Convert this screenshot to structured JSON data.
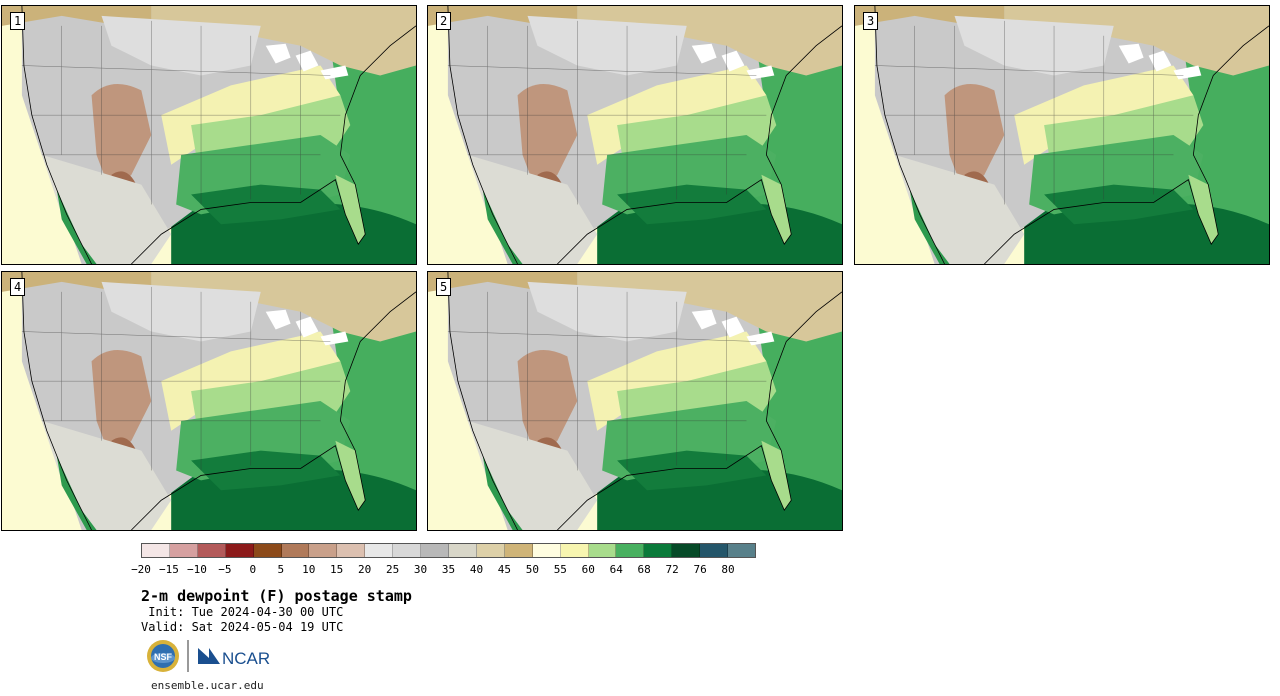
{
  "members": [
    {
      "label": "1"
    },
    {
      "label": "2"
    },
    {
      "label": "3"
    },
    {
      "label": "4"
    },
    {
      "label": "5"
    }
  ],
  "colorbar": {
    "colors": [
      "#f4e6e6",
      "#d6a0a0",
      "#b35a5a",
      "#8c1a1a",
      "#8c4a1a",
      "#b07a5a",
      "#c9a08a",
      "#dcc0b0",
      "#e8e8e8",
      "#d8d8d8",
      "#b8b8b8",
      "#d8d6c8",
      "#ddd0a8",
      "#cfb478",
      "#fffde0",
      "#f7f5b0",
      "#a8dc8c",
      "#48b060",
      "#0a7a3a",
      "#064a28",
      "#24566a",
      "#58808a"
    ],
    "ticks": [
      "−20",
      "−15",
      "−10",
      "−5",
      "0",
      "5",
      "10",
      "15",
      "20",
      "25",
      "30",
      "35",
      "40",
      "45",
      "50",
      "55",
      "60",
      "64",
      "68",
      "72",
      "76",
      "80"
    ],
    "units": "F"
  },
  "title": "2-m dewpoint (F) postage stamp",
  "init": " Init: Tue 2024-04-30 00 UTC",
  "valid": "Valid: Sat 2024-05-04 19 UTC",
  "logos": {
    "nsf": "NSF",
    "ncar": "NCAR"
  },
  "website": "ensemble.ucar.edu"
}
